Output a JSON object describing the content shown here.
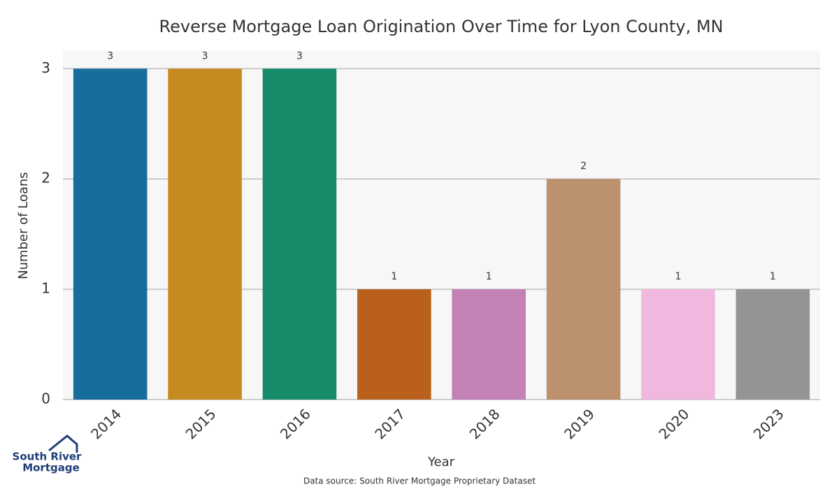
{
  "chart_data": {
    "type": "bar",
    "title": "Reverse Mortgage Loan Origination Over Time for Lyon County, MN",
    "x_label": "Year",
    "y_label": "Number of Loans",
    "categories": [
      "2014",
      "2015",
      "2016",
      "2017",
      "2018",
      "2019",
      "2020",
      "2023"
    ],
    "values": [
      3,
      3,
      3,
      1,
      1,
      2,
      1,
      1
    ],
    "colors": [
      "#176d9c",
      "#c68a20",
      "#168c6a",
      "#b8601c",
      "#c382b5",
      "#bb916e",
      "#f0b8df",
      "#949494"
    ],
    "ylim": [
      0,
      3.16
    ],
    "yticks": [
      0,
      1,
      2,
      3
    ],
    "grid": true
  },
  "source": "Data source: South River Mortgage Proprietary Dataset",
  "logo": [
    "South River",
    "Mortgage"
  ]
}
